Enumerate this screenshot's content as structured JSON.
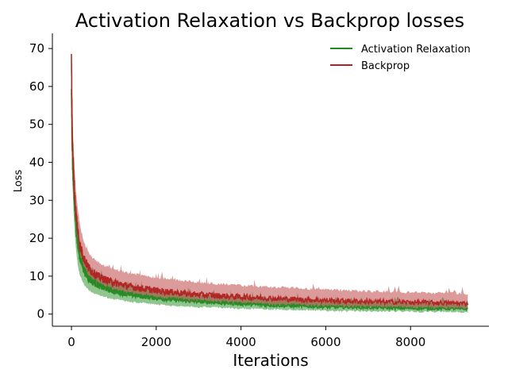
{
  "chart_data": {
    "type": "line",
    "title": "Activation Relaxation vs Backprop losses",
    "xlabel": "Iterations",
    "ylabel": "Loss",
    "xlim": [
      -450,
      9850
    ],
    "ylim": [
      -3.2,
      74
    ],
    "xticks": [
      0,
      2000,
      4000,
      6000,
      8000
    ],
    "yticks": [
      0,
      10,
      20,
      30,
      40,
      50,
      60,
      70
    ],
    "grid": false,
    "legend": "top-right",
    "series": [
      {
        "name": "Activation Relaxation",
        "color": "#228b22",
        "x": [
          0,
          10,
          25,
          50,
          75,
          100,
          150,
          200,
          300,
          400,
          500,
          700,
          1000,
          1500,
          2000,
          2500,
          3000,
          3500,
          4000,
          5000,
          6000,
          7000,
          8000,
          9000,
          9350
        ],
        "mean": [
          59,
          48,
          40,
          33,
          28,
          24,
          18,
          15,
          11.5,
          9.5,
          8.5,
          7.2,
          6.0,
          4.9,
          4.2,
          3.7,
          3.3,
          3.0,
          2.7,
          2.2,
          1.9,
          1.7,
          1.5,
          1.4,
          1.3
        ],
        "band_low": [
          55,
          42,
          34,
          27,
          22,
          18,
          13,
          10.5,
          8.0,
          6.6,
          5.9,
          5.0,
          4.2,
          3.3,
          2.8,
          2.4,
          2.1,
          1.9,
          1.7,
          1.4,
          1.1,
          1.0,
          0.9,
          0.8,
          0.7
        ],
        "band_high": [
          62,
          53,
          46,
          38,
          33,
          29,
          22,
          18.5,
          15,
          13,
          11.5,
          10,
          8.5,
          7.0,
          6.0,
          5.4,
          5.0,
          4.6,
          4.3,
          3.8,
          3.3,
          3.0,
          2.8,
          2.6,
          2.5
        ]
      },
      {
        "name": "Backprop",
        "color": "#b22222",
        "x": [
          0,
          10,
          25,
          50,
          75,
          100,
          150,
          200,
          300,
          400,
          500,
          700,
          1000,
          1500,
          2000,
          2500,
          3000,
          3500,
          4000,
          5000,
          6000,
          7000,
          8000,
          9000,
          9350
        ],
        "mean": [
          67,
          55,
          45,
          37,
          31.5,
          27.5,
          22,
          18,
          14.5,
          12.3,
          11,
          9.5,
          8.3,
          7.0,
          6.2,
          5.6,
          5.1,
          4.8,
          4.5,
          4.0,
          3.6,
          3.3,
          3.1,
          2.9,
          2.8
        ],
        "band_low": [
          60,
          48,
          38,
          31,
          26,
          22,
          17,
          14,
          11,
          9.2,
          8.2,
          7.0,
          6.0,
          5.0,
          4.3,
          3.8,
          3.4,
          3.1,
          2.9,
          2.5,
          2.2,
          2.0,
          1.8,
          1.7,
          1.6
        ],
        "band_high": [
          70,
          62,
          52,
          44,
          38,
          33,
          27,
          23,
          18.5,
          16,
          14.5,
          12.8,
          11.5,
          10.2,
          9.3,
          8.6,
          8.0,
          7.6,
          7.2,
          6.6,
          6.1,
          5.7,
          5.4,
          5.1,
          5.0
        ]
      }
    ]
  }
}
